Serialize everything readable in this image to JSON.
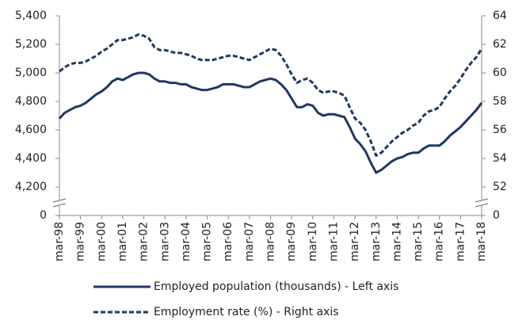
{
  "chart_data": {
    "type": "line",
    "categories": [
      "mar-98",
      null,
      null,
      null,
      "mar-99",
      null,
      null,
      null,
      "mar-00",
      null,
      null,
      null,
      "mar-01",
      null,
      null,
      null,
      "mar-02",
      null,
      null,
      null,
      "mar-03",
      null,
      null,
      null,
      "mar-04",
      null,
      null,
      null,
      "mar-05",
      null,
      null,
      null,
      "mar-06",
      null,
      null,
      null,
      "mar-07",
      null,
      null,
      null,
      "mar-08",
      null,
      null,
      null,
      "mar-09",
      null,
      null,
      null,
      "mar-10",
      null,
      null,
      null,
      "mar-11",
      null,
      null,
      null,
      "mar-12",
      null,
      null,
      null,
      "mar-13",
      null,
      null,
      null,
      "mar-14",
      null,
      null,
      null,
      "mar-15",
      null,
      null,
      null,
      "mar-16",
      null,
      null,
      null,
      "mar-17",
      null,
      null,
      null,
      "mar-18"
    ],
    "series": [
      {
        "name": "Employed population (thousands) - Left axis",
        "color": "#1f3864",
        "axis": "y",
        "values": [
          4680,
          4720,
          4740,
          4760,
          4770,
          4790,
          4820,
          4850,
          4870,
          4900,
          4940,
          4960,
          4950,
          4970,
          4990,
          5000,
          5000,
          4990,
          4960,
          4940,
          4940,
          4930,
          4930,
          4920,
          4920,
          4900,
          4890,
          4880,
          4880,
          4890,
          4900,
          4920,
          4920,
          4920,
          4910,
          4900,
          4900,
          4920,
          4940,
          4950,
          4960,
          4950,
          4920,
          4880,
          4820,
          4760,
          4760,
          4780,
          4770,
          4720,
          4700,
          4710,
          4710,
          4700,
          4690,
          4620,
          4540,
          4500,
          4450,
          4370,
          4300,
          4320,
          4350,
          4380,
          4400,
          4410,
          4430,
          4440,
          4440,
          4470,
          4490,
          4490,
          4490,
          4520,
          4560,
          4590,
          4620,
          4660,
          4700,
          4740,
          4790
        ]
      },
      {
        "name": "Employment rate (%) - Right axis",
        "color": "#1f3864",
        "axis": "y2",
        "dashed": true,
        "values": [
          60.1,
          60.4,
          60.6,
          60.7,
          60.7,
          60.8,
          61.0,
          61.2,
          61.5,
          61.7,
          62.0,
          62.3,
          62.3,
          62.4,
          62.5,
          62.7,
          62.6,
          62.4,
          61.8,
          61.6,
          61.6,
          61.5,
          61.4,
          61.4,
          61.3,
          61.2,
          61.0,
          60.9,
          60.9,
          60.9,
          61.0,
          61.1,
          61.2,
          61.2,
          61.1,
          61.0,
          60.9,
          61.1,
          61.3,
          61.5,
          61.7,
          61.6,
          61.2,
          60.6,
          59.9,
          59.3,
          59.5,
          59.6,
          59.3,
          58.8,
          58.6,
          58.7,
          58.7,
          58.6,
          58.4,
          57.6,
          56.8,
          56.5,
          56.0,
          55.2,
          54.2,
          54.4,
          54.8,
          55.2,
          55.5,
          55.8,
          56.0,
          56.3,
          56.5,
          57.0,
          57.3,
          57.4,
          57.6,
          58.2,
          58.7,
          59.1,
          59.6,
          60.2,
          60.7,
          61.1,
          61.7
        ]
      }
    ],
    "ylim": [
      0,
      5400
    ],
    "ybreak": [
      0,
      4000
    ],
    "yticks": [
      0,
      {
        "value": 4200,
        "label": "4,200"
      },
      {
        "value": 4400,
        "label": "4,400"
      },
      {
        "value": 4600,
        "label": "4,600"
      },
      {
        "value": 4800,
        "label": "4,800"
      },
      {
        "value": 5000,
        "label": "5,000"
      },
      {
        "value": 5200,
        "label": "5,200"
      },
      {
        "value": 5400,
        "label": "5,400"
      }
    ],
    "y2lim": [
      0,
      64
    ],
    "y2break": [
      0,
      50
    ],
    "y2ticks": [
      0,
      52,
      54,
      56,
      58,
      60,
      62,
      64
    ],
    "grid": false,
    "legend": "bottom"
  }
}
